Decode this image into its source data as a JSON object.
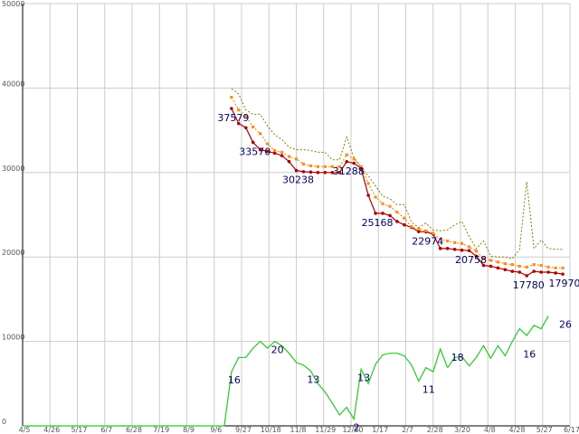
{
  "chart_data": {
    "type": "line",
    "grid": true,
    "x_ticks": [
      "4/5",
      "4/26",
      "5/17",
      "6/7",
      "6/28",
      "7/19",
      "8/9",
      "9/6",
      "9/27",
      "10/18",
      "11/8",
      "11/29",
      "12/20",
      "1/17",
      "2/7",
      "2/28",
      "3/20",
      "4/8",
      "4/28",
      "5/27",
      "6/17"
    ],
    "y_ticks": [
      0,
      10000,
      20000,
      30000,
      40000,
      50000
    ],
    "ylim": [
      0,
      50000
    ],
    "colors": {
      "price": "#b00000",
      "avg": "#ff8c1a",
      "high": "#8a7a00",
      "count": "#22cc22",
      "label": "#000066",
      "grid": "#cccccc",
      "axis": "#000000"
    },
    "price_x": [
      0,
      1,
      2,
      3,
      4,
      5,
      6,
      7,
      8,
      9,
      10,
      11,
      12,
      13,
      14,
      15,
      16,
      17,
      18,
      19,
      20,
      21,
      22,
      23,
      24,
      25,
      26,
      27,
      28,
      29,
      30,
      31,
      32,
      33,
      34,
      35,
      36,
      37,
      38,
      39,
      40,
      41,
      42,
      43,
      44,
      45,
      46,
      47,
      48,
      49,
      50,
      51,
      52,
      53,
      54,
      55,
      56,
      57,
      58,
      59
    ],
    "series": [
      {
        "key": "price",
        "x_start": 29,
        "values": [
          37579,
          35800,
          35300,
          33570,
          32700,
          32500,
          32300,
          32000,
          31300,
          30238,
          30100,
          30050,
          30000,
          30000,
          30000,
          30000,
          31288,
          31100,
          30500,
          27300,
          25168,
          25168,
          24900,
          24200,
          23800,
          23500,
          23000,
          22974,
          22700,
          21000,
          21000,
          20900,
          20800,
          20758,
          20100,
          19000,
          18900,
          18700,
          18500,
          18300,
          18200,
          17780,
          18300,
          18200,
          18200,
          18100,
          17970
        ]
      },
      {
        "key": "avg",
        "x_start": 29,
        "values": [
          38900,
          37400,
          36700,
          35400,
          34600,
          33400,
          32600,
          32400,
          31900,
          31600,
          31000,
          30800,
          30700,
          30700,
          30700,
          30700,
          32100,
          31600,
          30700,
          28700,
          27100,
          26300,
          26000,
          25300,
          24600,
          23600,
          23300,
          23100,
          22800,
          22100,
          21900,
          21700,
          21600,
          21200,
          20700,
          19800,
          19600,
          19400,
          19200,
          19100,
          18900,
          18800,
          19100,
          19000,
          18800,
          18700,
          18700
        ]
      },
      {
        "key": "high",
        "x_start": 29,
        "values": [
          39900,
          39300,
          37400,
          36900,
          36900,
          35500,
          34500,
          33900,
          33000,
          32700,
          32700,
          32600,
          32400,
          32400,
          31500,
          31500,
          34200,
          31800,
          30600,
          29600,
          28400,
          27200,
          26900,
          26200,
          26200,
          24100,
          23500,
          24000,
          23200,
          23100,
          23200,
          23800,
          24200,
          22400,
          21000,
          21900,
          20100,
          20000,
          20000,
          19800,
          20900,
          28900,
          21000,
          22000,
          21000,
          20900,
          20900
        ]
      },
      {
        "key": "count",
        "x_start": 0,
        "values": [
          0,
          0,
          0,
          0,
          0,
          0,
          0,
          0,
          0,
          0,
          0,
          0,
          0,
          0,
          0,
          0,
          0,
          0,
          0,
          0,
          0,
          0,
          0,
          0,
          0,
          0,
          0,
          0,
          0,
          6400,
          8100,
          8100,
          9200,
          10000,
          9200,
          10000,
          9500,
          8600,
          7500,
          7200,
          6500,
          5000,
          4000,
          2700,
          1300,
          2200,
          800,
          6700,
          5000,
          7300,
          8400,
          8600,
          8600,
          8300,
          7200,
          5300,
          6900,
          6400,
          9100,
          6900
        ]
      },
      {
        "key": "count_tail",
        "x_start": 59,
        "values": [
          6900,
          8100,
          8200,
          7100,
          8100,
          9500,
          8000,
          9500,
          8300,
          10000,
          11500,
          10700,
          11900,
          11500,
          13000
        ]
      }
    ],
    "price_labels": [
      {
        "x": 29,
        "y": 37579,
        "text": "37579"
      },
      {
        "x": 32,
        "y": 33570,
        "text": "33570"
      },
      {
        "x": 38,
        "y": 30238,
        "text": "30238"
      },
      {
        "x": 45,
        "y": 31288,
        "text": "31288"
      },
      {
        "x": 49,
        "y": 25168,
        "text": "25168"
      },
      {
        "x": 56,
        "y": 22974,
        "text": "22974"
      },
      {
        "x": 62,
        "y": 20758,
        "text": "20758"
      },
      {
        "x": 70,
        "y": 17780,
        "text": "17780"
      },
      {
        "x": 75,
        "y": 17970,
        "text": "17970"
      }
    ],
    "count_labels": [
      {
        "x": 29,
        "y": 6400,
        "text": "16"
      },
      {
        "x": 35,
        "y": 10000,
        "text": "20"
      },
      {
        "x": 40,
        "y": 6500,
        "text": "13"
      },
      {
        "x": 46,
        "y": 800,
        "text": "2"
      },
      {
        "x": 47,
        "y": 6700,
        "text": "13"
      },
      {
        "x": 56,
        "y": 5300,
        "text": "11"
      },
      {
        "x": 60,
        "y": 9100,
        "text": "18"
      },
      {
        "x": 70,
        "y": 9500,
        "text": "16"
      },
      {
        "x": 75,
        "y": 13000,
        "text": "26"
      }
    ]
  }
}
